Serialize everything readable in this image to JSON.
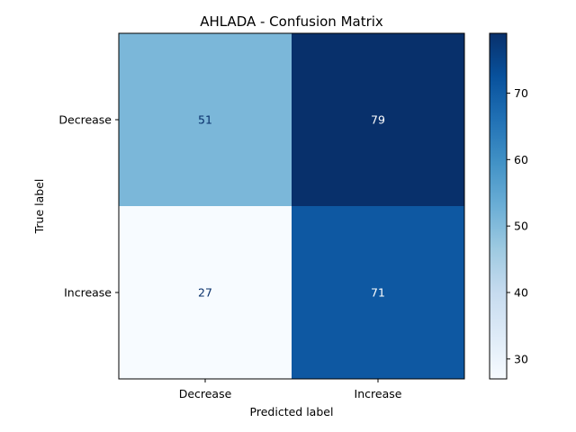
{
  "chart_data": {
    "type": "heatmap",
    "title": "AHLADA - Confusion Matrix",
    "xlabel": "Predicted label",
    "ylabel": "True label",
    "x_categories": [
      "Decrease",
      "Increase"
    ],
    "y_categories": [
      "Decrease",
      "Increase"
    ],
    "values": [
      [
        51,
        79
      ],
      [
        27,
        71
      ]
    ],
    "colormap": "Blues",
    "colorbar": {
      "range": [
        27,
        79
      ],
      "ticks": [
        30,
        40,
        50,
        60,
        70
      ],
      "tick_labels": [
        "30",
        "40",
        "50",
        "60",
        "70"
      ]
    },
    "grid": false
  }
}
